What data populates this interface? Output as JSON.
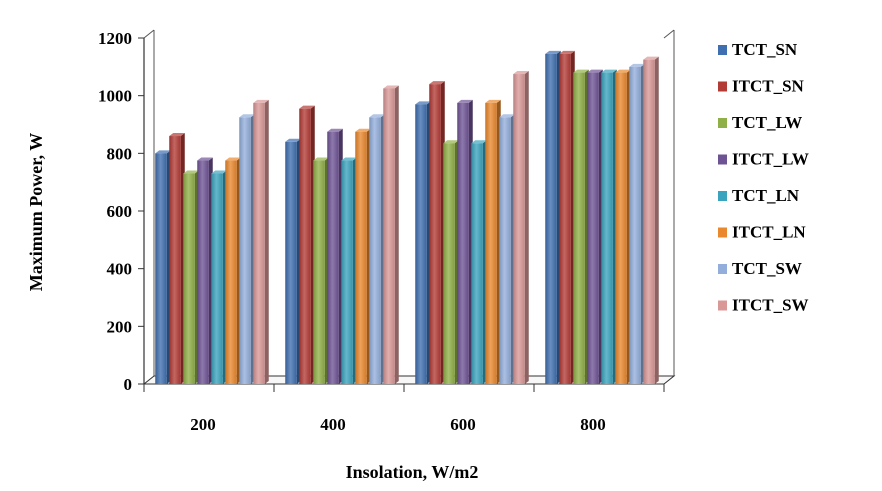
{
  "chart_data": {
    "type": "bar",
    "title": "",
    "xlabel": "Insolation, W/m2",
    "ylabel": "Maximum Power, W",
    "categories": [
      "200",
      "400",
      "600",
      "800"
    ],
    "ylim": [
      0,
      1200
    ],
    "yticks": [
      "0",
      "200",
      "400",
      "600",
      "800",
      "1000",
      "1200"
    ],
    "legend_position": "right",
    "grid": false,
    "series": [
      {
        "name": "TCT_SN",
        "color": "#3f6fb0",
        "values": [
          800,
          840,
          970,
          1145
        ]
      },
      {
        "name": "ITCT_SN",
        "color": "#b23b36",
        "values": [
          860,
          955,
          1040,
          1145
        ]
      },
      {
        "name": "TCT_LW",
        "color": "#8fb046",
        "values": [
          730,
          775,
          835,
          1080
        ]
      },
      {
        "name": "ITCT_LW",
        "color": "#6e5394",
        "values": [
          775,
          875,
          975,
          1080
        ]
      },
      {
        "name": "TCT_LN",
        "color": "#3aa3bd",
        "values": [
          730,
          775,
          835,
          1080
        ]
      },
      {
        "name": "ITCT_LN",
        "color": "#e9882d",
        "values": [
          775,
          875,
          975,
          1080
        ]
      },
      {
        "name": "TCT_SW",
        "color": "#93aedb",
        "values": [
          925,
          925,
          925,
          1100
        ]
      },
      {
        "name": "ITCT_SW",
        "color": "#d99796",
        "values": [
          975,
          1025,
          1075,
          1125
        ]
      }
    ]
  }
}
